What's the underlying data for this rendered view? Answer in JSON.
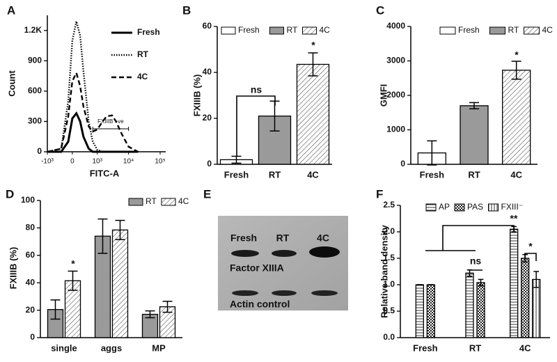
{
  "chart_data": [
    {
      "panel": "A",
      "type": "line",
      "xlabel": "FITC-A",
      "ylabel": "Count",
      "xscale": "asinh",
      "x": [
        -1000,
        -300,
        -100,
        0,
        100,
        200,
        300,
        500,
        700,
        1000,
        1500,
        2000,
        3000,
        4000,
        6000,
        10000,
        20000
      ],
      "series": [
        {
          "name": "Fresh",
          "color": "#000000",
          "dash": "solid",
          "values": [
            0,
            0,
            100,
            330,
            380,
            300,
            150,
            30,
            0,
            0,
            0,
            0,
            0,
            0,
            0,
            0,
            0
          ]
        },
        {
          "name": "RT",
          "color": "#000000",
          "dash": "dotted",
          "values": [
            0,
            30,
            500,
            1100,
            1290,
            1150,
            800,
            300,
            100,
            20,
            0,
            0,
            0,
            0,
            0,
            0,
            0
          ]
        },
        {
          "name": "4C",
          "color": "#000000",
          "dash": "dashed",
          "values": [
            0,
            30,
            350,
            700,
            780,
            650,
            450,
            250,
            200,
            220,
            300,
            350,
            360,
            300,
            180,
            50,
            0
          ]
        }
      ],
      "xlim": [
        -1000,
        150000
      ],
      "xticks": [
        {
          "value": -1000,
          "label": "-10³"
        },
        0,
        {
          "value": 1000,
          "label": "10³"
        },
        {
          "value": 10000,
          "label": "10⁴"
        },
        {
          "value": 100000,
          "label": "10⁵"
        }
      ],
      "ylim": [
        0,
        1350
      ],
      "yticks": [
        0,
        300,
        600,
        900,
        {
          "value": 1200,
          "label": "1.2K"
        }
      ],
      "annotations": [
        "FXIIIB +ve"
      ],
      "legend": "top-right"
    },
    {
      "panel": "B",
      "type": "bar",
      "ylabel": "FXIIIB (%)",
      "categories": [
        "Fresh",
        "RT",
        "4C"
      ],
      "values": [
        2,
        21,
        43.5
      ],
      "errors": [
        1.5,
        6.5,
        5
      ],
      "colors": [
        "#ffffff",
        "#9a9a9a",
        "#ffffff"
      ],
      "patterns": [
        "none",
        "none",
        "diagonal"
      ],
      "ylim": [
        0,
        60
      ],
      "yticks": [
        0,
        20,
        40,
        60
      ],
      "annotations": [
        "ns",
        "*"
      ],
      "legend": "top"
    },
    {
      "panel": "C",
      "type": "bar",
      "ylabel": "GMFI",
      "categories": [
        "Fresh",
        "RT",
        "4C"
      ],
      "values": [
        330,
        1700,
        2730
      ],
      "errors": [
        350,
        90,
        260
      ],
      "colors": [
        "#ffffff",
        "#9a9a9a",
        "#ffffff"
      ],
      "patterns": [
        "none",
        "none",
        "diagonal"
      ],
      "ylim": [
        0,
        4000
      ],
      "yticks": [
        0,
        1000,
        2000,
        3000,
        4000
      ],
      "annotations": [
        "*"
      ],
      "legend": "top"
    },
    {
      "panel": "D",
      "type": "bar",
      "ylabel": "FXIIIB (%)",
      "categories": [
        "single",
        "aggs",
        "MP"
      ],
      "series": [
        {
          "name": "RT",
          "color": "#9a9a9a",
          "pattern": "none",
          "values": [
            20.5,
            74,
            17
          ],
          "errors": [
            7,
            12.5,
            2.5
          ]
        },
        {
          "name": "4C",
          "color": "#ffffff",
          "pattern": "diagonal",
          "values": [
            41.5,
            78.5,
            22.5
          ],
          "errors": [
            7,
            7,
            4
          ]
        }
      ],
      "ylim": [
        0,
        100
      ],
      "yticks": [
        0,
        20,
        40,
        60,
        80,
        100
      ],
      "annotations": [
        "*"
      ],
      "legend": "top"
    },
    {
      "panel": "F",
      "type": "bar",
      "ylabel": "Relative band density",
      "categories": [
        "Fresh",
        "RT",
        "4C"
      ],
      "series": [
        {
          "name": "AP",
          "color": "#ffffff",
          "pattern": "horizontal",
          "values": [
            1.0,
            1.22,
            2.05
          ],
          "errors": [
            0,
            0.06,
            0.05
          ]
        },
        {
          "name": "PAS",
          "color": "#ffffff",
          "pattern": "checker",
          "values": [
            1.0,
            1.04,
            1.5
          ],
          "errors": [
            0,
            0.06,
            0.07
          ]
        },
        {
          "name": "FXIII⁻",
          "color": "#ffffff",
          "pattern": "vertical",
          "values": [
            null,
            null,
            1.1
          ],
          "errors": [
            null,
            null,
            0.15
          ]
        }
      ],
      "ylim": [
        0,
        2.5
      ],
      "yticks": [
        {
          "value": 0,
          "label": "0.0"
        },
        0.5,
        {
          "value": 1,
          "label": "1.0"
        },
        1.5,
        {
          "value": 2,
          "label": "2.0"
        },
        2.5
      ],
      "annotations": [
        "**",
        "ns",
        "*"
      ],
      "legend": "top"
    }
  ],
  "blot": {
    "panel": "E",
    "lanes": [
      "Fresh",
      "RT",
      "4C"
    ],
    "labels": [
      "Factor XIIIA",
      "Actin control"
    ]
  }
}
